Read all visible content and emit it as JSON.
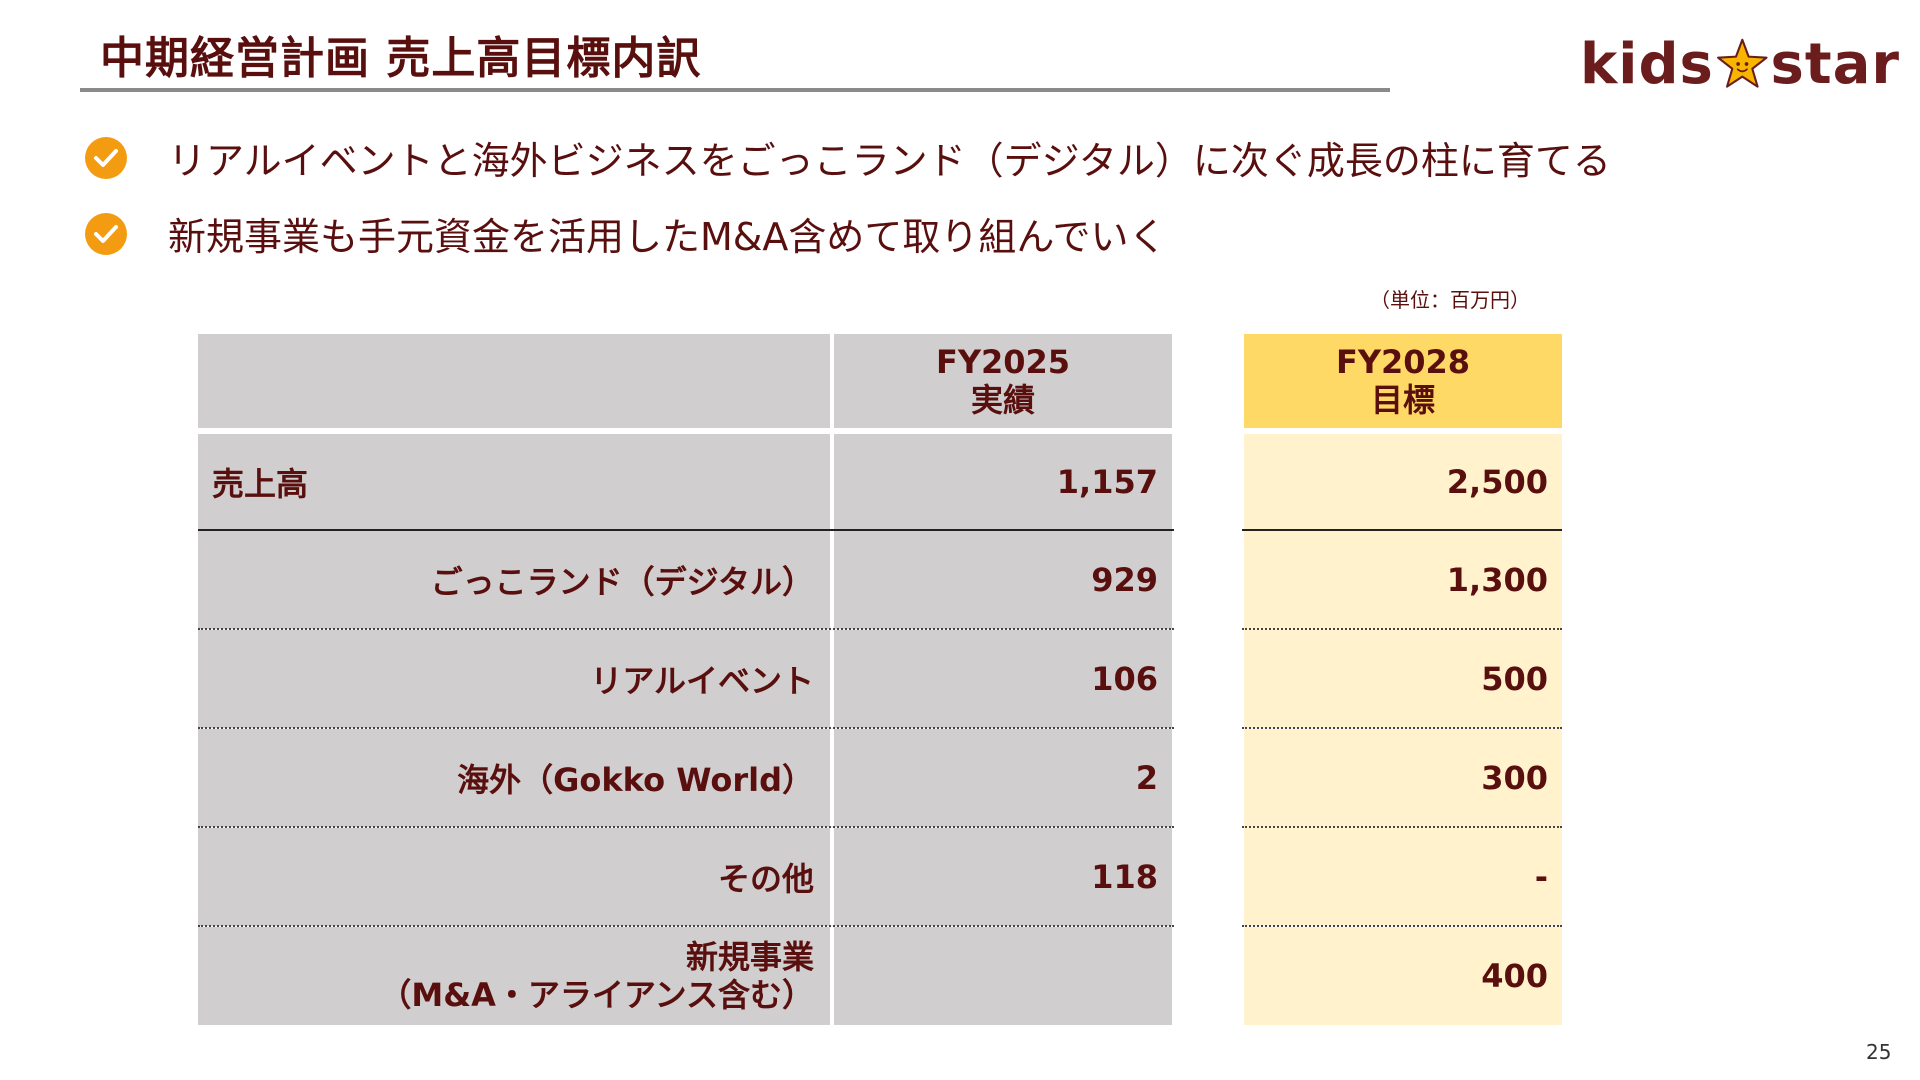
{
  "title": "中期経営計画 売上高目標内訳",
  "logo": {
    "text_left": "kids",
    "text_right": "star",
    "brand_color": "#6b1d1d",
    "star_color": "#f7b500"
  },
  "bullets": [
    "リアルイベントと海外ビジネスをごっこランド（デジタル）に次ぐ成長の柱に育てる",
    "新規事業も手元資金を活用したM&A含めて取り組んでいく"
  ],
  "check_icon_color": "#f39c12",
  "unit_label": "（単位：百万円）",
  "table": {
    "headers": {
      "fy2025_line1": "FY2025",
      "fy2025_line2": "実績",
      "fy2028_line1": "FY2028",
      "fy2028_line2": "目標"
    },
    "rows": [
      {
        "label": "売上高",
        "fy2025": "1,157",
        "fy2028": "2,500"
      },
      {
        "label": "ごっこランド（デジタル）",
        "fy2025": "929",
        "fy2028": "1,300"
      },
      {
        "label": "リアルイベント",
        "fy2025": "106",
        "fy2028": "500"
      },
      {
        "label": "海外（Gokko World）",
        "fy2025": "2",
        "fy2028": "300"
      },
      {
        "label": "その他",
        "fy2025": "118",
        "fy2028": "-"
      },
      {
        "label_line1": "新規事業",
        "label_line2": "（M&A・アライアンス含む）",
        "fy2025": "",
        "fy2028": "400"
      }
    ],
    "colors": {
      "gray": "#d0cece",
      "cream": "#fff2cc",
      "gold": "#ffd966"
    }
  },
  "page_number": "25"
}
